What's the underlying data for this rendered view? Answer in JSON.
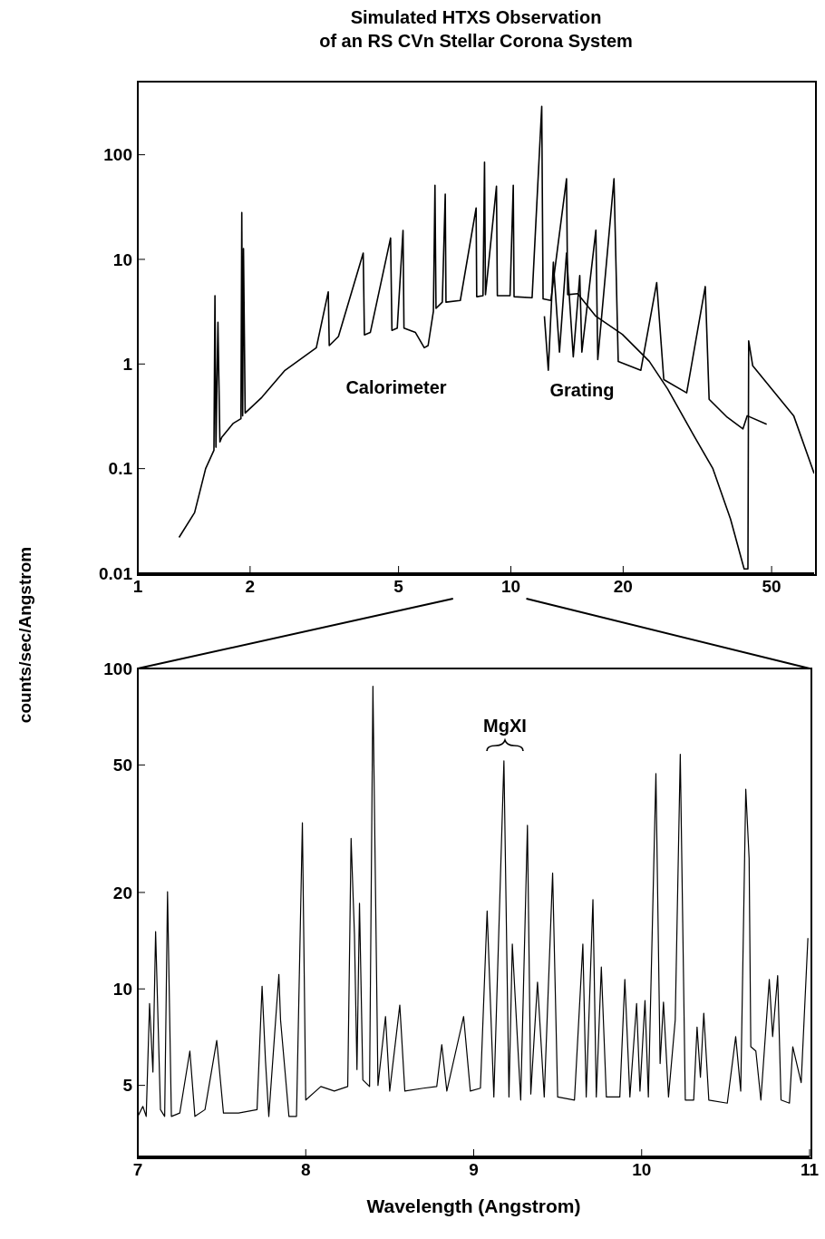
{
  "chart_data": [
    {
      "type": "line",
      "title": "Simulated HTXS Observation\nof an RS CVn Stellar Corona System",
      "ylabel": "counts/sec/Angstrom",
      "log": "xy",
      "xlim": [
        1,
        65
      ],
      "xticks": [
        1,
        2,
        5,
        10,
        20,
        50
      ],
      "ylim": [
        0.01,
        500
      ],
      "yticks": [
        0.01,
        0.1,
        1,
        10,
        100
      ],
      "series": [
        {
          "color": "#000000",
          "x": [
            1.29,
            1.42,
            1.52,
            1.6,
            1.61,
            1.62,
            1.64,
            1.66,
            1.68,
            1.8,
            1.89,
            1.9,
            1.91,
            1.92,
            1.94,
            2.15,
            2.48,
            3.01,
            3.24,
            3.26,
            3.45,
            4.02,
            4.05,
            4.2,
            4.76,
            4.8,
            4.96,
            5.14,
            5.17,
            5.55,
            5.86,
            6.0,
            6.2,
            6.26,
            6.3,
            6.55,
            6.67,
            6.7,
            7.32,
            8.07,
            8.1,
            8.42,
            8.5,
            8.55,
            9.15,
            9.2,
            9.95,
            10.15,
            10.2,
            11.4,
            12.1,
            12.2,
            12.8,
            14.1,
            14.2,
            15.1,
            16.9,
            19.9,
            23.5,
            26.3,
            31.1,
            34.8,
            38.8,
            42.2,
            43.2,
            43.4,
            44.5,
            57.3,
            65
          ],
          "values": [
            0.022,
            0.038,
            0.1,
            0.15,
            4.5,
            0.16,
            2.5,
            0.18,
            0.2,
            0.27,
            0.3,
            28,
            0.32,
            12.7,
            0.34,
            0.48,
            0.87,
            1.43,
            4.9,
            1.5,
            1.83,
            11.5,
            1.9,
            2.0,
            16,
            2.1,
            2.2,
            18.9,
            2.2,
            2.0,
            1.43,
            1.5,
            3.2,
            51,
            3.4,
            3.9,
            42,
            3.9,
            4.05,
            31,
            4.4,
            4.5,
            85,
            4.6,
            50,
            4.5,
            4.5,
            51,
            4.4,
            4.3,
            290,
            4.2,
            4.05,
            59,
            4.6,
            4.7,
            2.86,
            1.92,
            1.06,
            0.58,
            0.2,
            0.1,
            0.033,
            0.011,
            0.011,
            1.66,
            0.96,
            0.32,
            0.09
          ]
        },
        {
          "color": "#000000",
          "x": [
            12.3,
            12.6,
            13,
            13.5,
            14.1,
            14.7,
            15.3,
            15.5,
            16.9,
            17.1,
            18.9,
            19.4,
            22.3,
            24.6,
            25.7,
            29.6,
            33.2,
            34,
            38,
            41.9,
            43,
            48.5
          ],
          "values": [
            2.86,
            0.87,
            9.4,
            1.3,
            11.5,
            1.17,
            7,
            1.3,
            19,
            1.1,
            59,
            1.06,
            0.87,
            6,
            0.71,
            0.53,
            5.5,
            0.46,
            0.31,
            0.24,
            0.32,
            0.265
          ]
        }
      ],
      "annotations": [
        "Calorimeter",
        "Grating"
      ]
    },
    {
      "type": "line",
      "xlabel": "Wavelength (Angstrom)",
      "log": "y",
      "xlim": [
        7,
        11
      ],
      "xticks": [
        7,
        8,
        9,
        10,
        11
      ],
      "ylim": [
        3,
        100
      ],
      "yticks": [
        5,
        10,
        20,
        50,
        100
      ],
      "series": [
        {
          "color": "#000000",
          "x": [
            7.0,
            7.03,
            7.05,
            7.07,
            7.09,
            7.106,
            7.135,
            7.16,
            7.177,
            7.2,
            7.25,
            7.31,
            7.34,
            7.4,
            7.47,
            7.51,
            7.6,
            7.71,
            7.74,
            7.76,
            7.78,
            7.84,
            7.85,
            7.9,
            7.945,
            7.98,
            8.0,
            8.09,
            8.17,
            8.25,
            8.27,
            8.29,
            8.305,
            8.32,
            8.34,
            8.38,
            8.4,
            8.43,
            8.475,
            8.5,
            8.56,
            8.59,
            8.7,
            8.78,
            8.81,
            8.84,
            8.94,
            8.98,
            9.04,
            9.08,
            9.12,
            9.18,
            9.21,
            9.23,
            9.28,
            9.32,
            9.34,
            9.38,
            9.42,
            9.47,
            9.5,
            9.6,
            9.65,
            9.67,
            9.71,
            9.73,
            9.76,
            9.79,
            9.87,
            9.9,
            9.93,
            9.97,
            9.99,
            10.02,
            10.04,
            10.085,
            10.11,
            10.13,
            10.16,
            10.2,
            10.23,
            10.26,
            10.31,
            10.33,
            10.35,
            10.37,
            10.4,
            10.51,
            10.56,
            10.59,
            10.62,
            10.64,
            10.65,
            10.68,
            10.71,
            10.76,
            10.78,
            10.81,
            10.83,
            10.88,
            10.9,
            10.95,
            10.99
          ],
          "values": [
            4.0,
            4.3,
            4.0,
            9.0,
            5.5,
            15.1,
            4.2,
            4.0,
            20.1,
            4.0,
            4.1,
            6.4,
            4.0,
            4.2,
            6.9,
            4.1,
            4.1,
            4.2,
            10.2,
            6.0,
            4.0,
            11.1,
            8.0,
            4.0,
            4.0,
            33,
            4.5,
            4.96,
            4.8,
            4.96,
            29.5,
            14.8,
            5.6,
            18.5,
            5.2,
            4.96,
            88,
            5.0,
            8.2,
            4.8,
            8.9,
            4.8,
            4.9,
            4.96,
            6.7,
            4.8,
            8.2,
            4.8,
            4.9,
            17.5,
            4.6,
            51.5,
            4.6,
            13.8,
            4.5,
            32.4,
            4.7,
            10.5,
            4.6,
            23,
            4.6,
            4.5,
            13.8,
            4.6,
            19,
            4.6,
            11.7,
            4.6,
            4.6,
            10.7,
            4.6,
            9.0,
            4.8,
            9.2,
            4.6,
            47,
            5.85,
            9.1,
            4.6,
            8.0,
            54,
            4.5,
            4.5,
            7.6,
            5.3,
            8.4,
            4.5,
            4.4,
            7.1,
            4.8,
            42,
            25.5,
            6.6,
            6.4,
            4.5,
            10.7,
            7.1,
            11,
            4.5,
            4.4,
            6.6,
            5.1,
            14.4
          ]
        }
      ],
      "annotations": [
        "MgXI"
      ]
    }
  ]
}
